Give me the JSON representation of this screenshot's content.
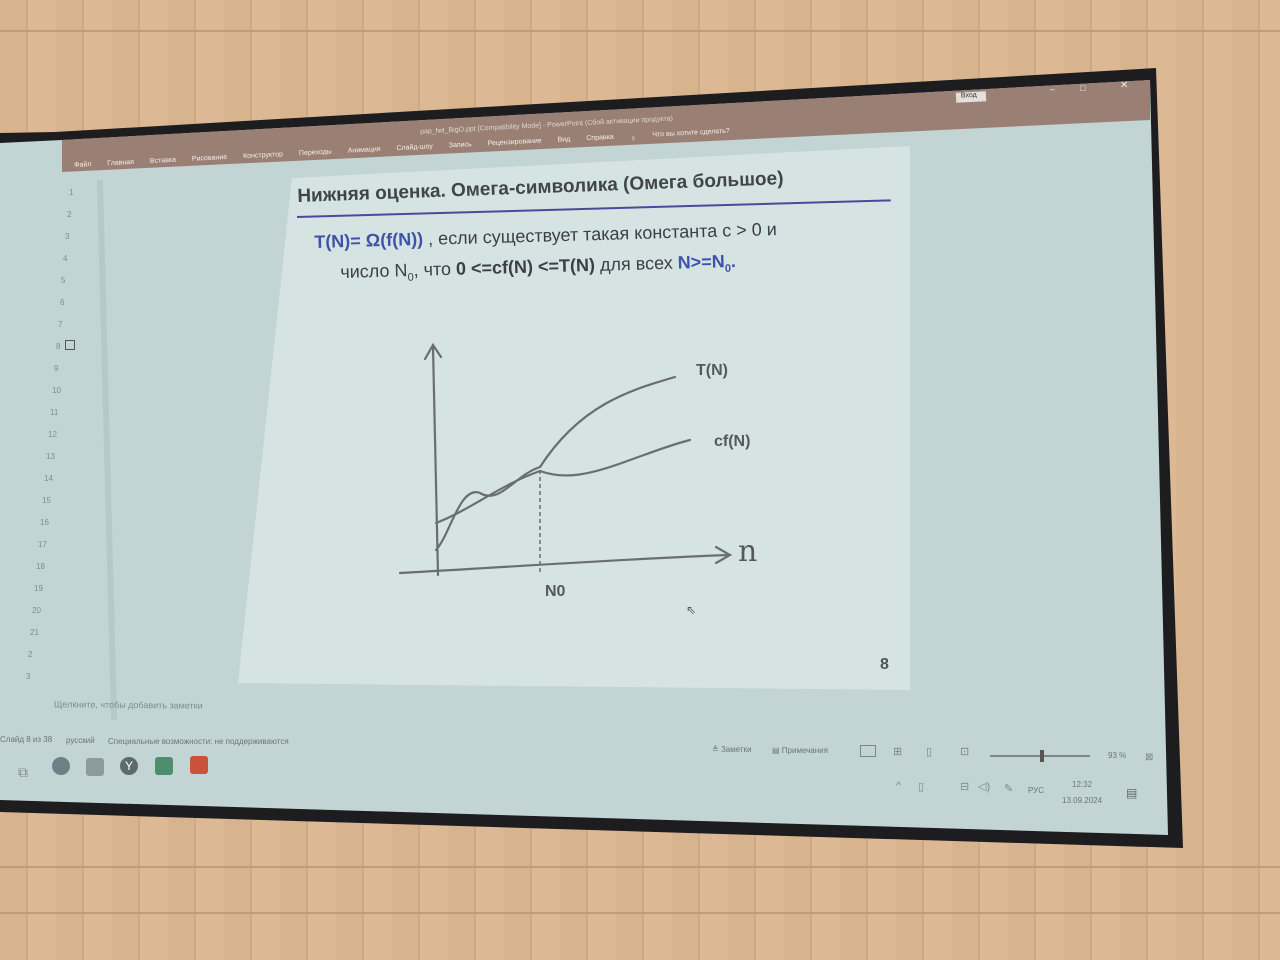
{
  "window": {
    "title": "pap_fwt_BigO.ppt [Compatibility Mode] - PowerPoint (Сбой активации продукта)",
    "signin": "Вход"
  },
  "ribbon": {
    "tabs": [
      "Файл",
      "Главная",
      "Вставка",
      "Рисование",
      "Конструктор",
      "Переходы",
      "Анимация",
      "Слайд-шоу",
      "Запись",
      "Рецензирование",
      "Вид",
      "Справка"
    ],
    "search_placeholder": "Что вы хотите сделать?"
  },
  "sidebar": {
    "slide_numbers": [
      "1",
      "2",
      "3",
      "4",
      "5",
      "6",
      "7",
      "8",
      "9",
      "10",
      "11",
      "12",
      "13",
      "14",
      "15",
      "16",
      "17",
      "18",
      "19",
      "20",
      "21",
      "2",
      "3"
    ]
  },
  "slide": {
    "title": "Нижняя оценка. Омега-символика (Омега большое)",
    "def_part1": "T(N)= Ω(f(N))",
    "def_part2": " , если существует такая константа c > 0  и",
    "def_part3": "число N",
    "def_sub0": "0",
    "def_part4": ", что ",
    "def_part5": "0 <=cf(N) <=T(N)",
    "def_part6": " для всех ",
    "def_part7": "N>=N",
    "def_sub1": "0",
    "def_part8": ".",
    "graph": {
      "curve1_label": "T(N)",
      "curve2_label": "cf(N)",
      "x_axis_label": "n",
      "threshold_label": "N0"
    },
    "page_number": "8"
  },
  "notes": {
    "placeholder": "Щелкните, чтобы добавить заметки"
  },
  "statusbar": {
    "slide_info": "Слайд 8 из 38",
    "language": "русский",
    "accessibility": "Специальные возможности: не поддерживаются",
    "notes_button": "Заметки",
    "comments_button": "Примечания",
    "zoom": "93 %"
  },
  "taskbar": {
    "lang": "РУС",
    "time": "12:32",
    "date": "13.09.2024"
  }
}
